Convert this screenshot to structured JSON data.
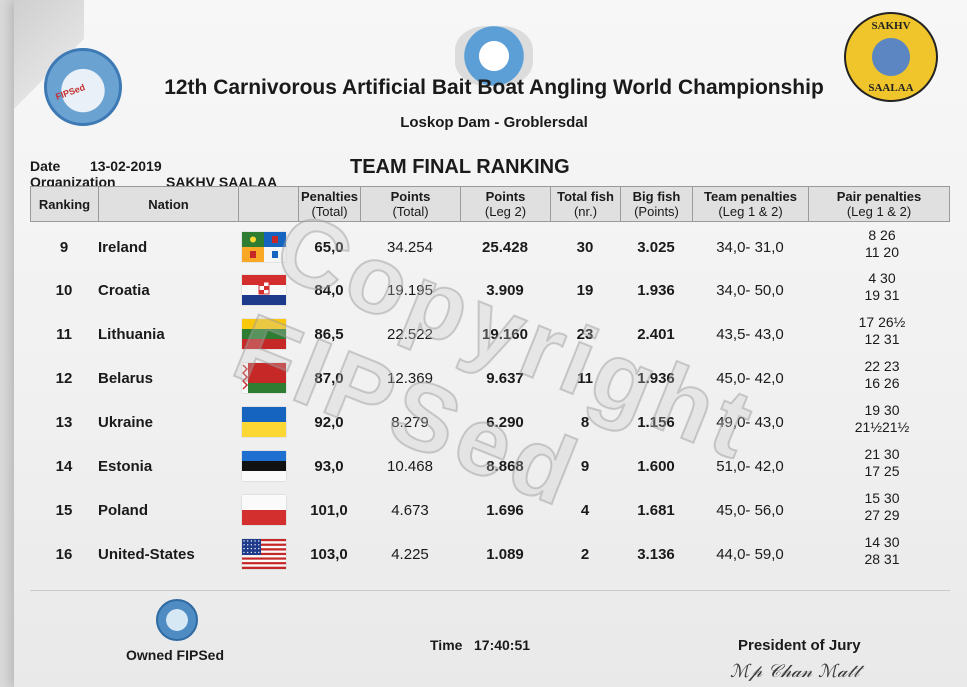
{
  "header": {
    "title": "12th Carnivorous Artificial Bait Boat Angling World Championship",
    "venue": "Loskop Dam - Groblersdal",
    "date_label": "Date",
    "date_value": "13-02-2019",
    "org_label": "Organization",
    "org_value": "SAKHV SAALAA",
    "report_title": "TEAM FINAL RANKING",
    "logo_left_text": "FIPSed",
    "logo_right_top": "SAKHV",
    "logo_right_bottom": "SAALAA"
  },
  "columns": {
    "ranking": "Ranking",
    "nation": "Nation",
    "penalties": "Penalties",
    "penalties_sub": "(Total)",
    "points_total": "Points",
    "points_total_sub": "(Total)",
    "points_leg2": "Points",
    "points_leg2_sub": "(Leg 2)",
    "total_fish": "Total fish",
    "total_fish_sub": "(nr.)",
    "big_fish": "Big fish",
    "big_fish_sub": "(Points)",
    "team_penalties": "Team penalties",
    "team_penalties_sub": "(Leg 1 & 2)",
    "pair_penalties": "Pair penalties",
    "pair_penalties_sub": "(Leg 1 & 2)"
  },
  "rows": [
    {
      "rank": "9",
      "nation": "Ireland",
      "flag": "ireland-provincial-flag",
      "penalties": "65,0",
      "points_total": "34.254",
      "points_leg2": "25.428",
      "fish": "30",
      "big_fish": "3.025",
      "team_pen": "34,0- 31,0",
      "pair1": "8 26",
      "pair2": "11 20"
    },
    {
      "rank": "10",
      "nation": "Croatia",
      "flag": "croatia-flag",
      "penalties": "84,0",
      "points_total": "19.195",
      "points_leg2": "3.909",
      "fish": "19",
      "big_fish": "1.936",
      "team_pen": "34,0- 50,0",
      "pair1": "4 30",
      "pair2": "19 31"
    },
    {
      "rank": "11",
      "nation": "Lithuania",
      "flag": "lithuania-flag",
      "penalties": "86,5",
      "points_total": "22.522",
      "points_leg2": "19.160",
      "fish": "23",
      "big_fish": "2.401",
      "team_pen": "43,5- 43,0",
      "pair1": "17 26½",
      "pair2": "12 31"
    },
    {
      "rank": "12",
      "nation": "Belarus",
      "flag": "belarus-flag",
      "penalties": "87,0",
      "points_total": "12.369",
      "points_leg2": "9.637",
      "fish": "11",
      "big_fish": "1.936",
      "team_pen": "45,0- 42,0",
      "pair1": "22 23",
      "pair2": "16 26"
    },
    {
      "rank": "13",
      "nation": "Ukraine",
      "flag": "ukraine-flag",
      "penalties": "92,0",
      "points_total": "8.279",
      "points_leg2": "6.290",
      "fish": "8",
      "big_fish": "1.156",
      "team_pen": "49,0- 43,0",
      "pair1": "19 30",
      "pair2": "21½21½"
    },
    {
      "rank": "14",
      "nation": "Estonia",
      "flag": "estonia-flag",
      "penalties": "93,0",
      "points_total": "10.468",
      "points_leg2": "8.868",
      "fish": "9",
      "big_fish": "1.600",
      "team_pen": "51,0- 42,0",
      "pair1": "21 30",
      "pair2": "17 25"
    },
    {
      "rank": "15",
      "nation": "Poland",
      "flag": "poland-flag",
      "penalties": "101,0",
      "points_total": "4.673",
      "points_leg2": "1.696",
      "fish": "4",
      "big_fish": "1.681",
      "team_pen": "45,0- 56,0",
      "pair1": "15 30",
      "pair2": "27 29"
    },
    {
      "rank": "16",
      "nation": "United-States",
      "flag": "usa-flag",
      "penalties": "103,0",
      "points_total": "4.225",
      "points_leg2": "1.089",
      "fish": "2",
      "big_fish": "3.136",
      "team_pen": "44,0- 59,0",
      "pair1": "14 30",
      "pair2": "28 31"
    }
  ],
  "watermark": "Copyright FIPSed",
  "footer": {
    "owned": "Owned FIPSed",
    "time_label": "Time",
    "time_value": "17:40:51",
    "president": "President of Jury"
  },
  "colors": {
    "paper": "#f3f3f3",
    "header_band": "#e0e0e0",
    "text": "#1a1a1a"
  }
}
